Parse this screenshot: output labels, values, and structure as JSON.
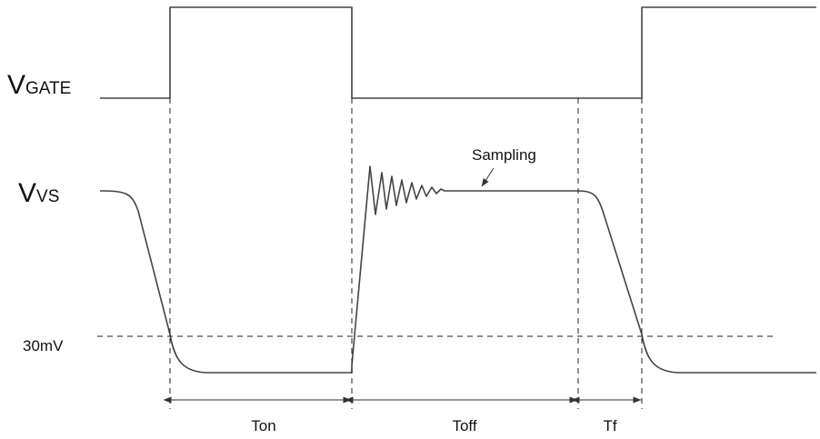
{
  "signals": {
    "gate": {
      "letter": "V",
      "subscript": "GATE"
    },
    "vs": {
      "letter": "V",
      "subscript": "VS"
    }
  },
  "threshold_label": "30mV",
  "annotation": {
    "sampling": "Sampling"
  },
  "intervals": {
    "ton": "Ton",
    "toff": "Toff",
    "tf": "Tf"
  }
}
